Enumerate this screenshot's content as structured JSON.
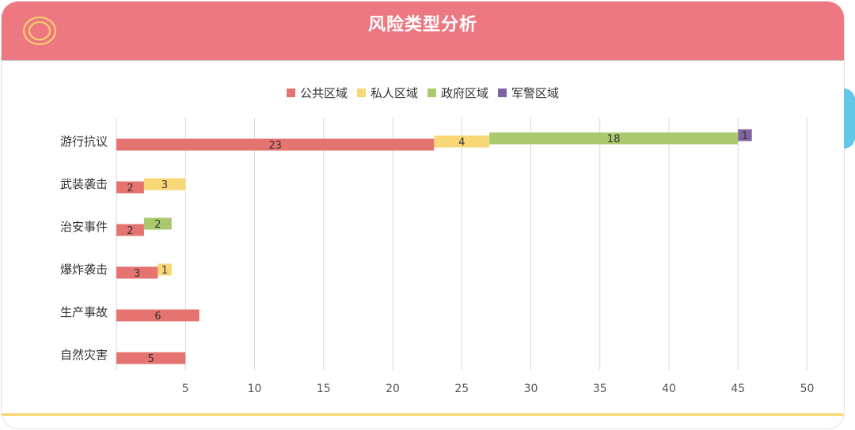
{
  "header": {
    "title": "风险类型分析",
    "colors": {
      "background": "#ee7882",
      "logo": "#f8d46b",
      "bottom_line": "#f8d46b",
      "side_tab": "#62c8e6"
    }
  },
  "chart_data": {
    "type": "bar",
    "orientation": "horizontal",
    "stacked": true,
    "title": "风险类型分析",
    "categories": [
      "游行抗议",
      "武装袭击",
      "治安事件",
      "爆炸袭击",
      "生产事故",
      "自然灾害"
    ],
    "series": [
      {
        "name": "公共区域",
        "color": "#e5736f",
        "values": [
          23,
          2,
          2,
          3,
          6,
          5
        ]
      },
      {
        "name": "私人区域",
        "color": "#f8d777",
        "values": [
          4,
          3,
          0,
          1,
          0,
          0
        ]
      },
      {
        "name": "政府区域",
        "color": "#aac96f",
        "values": [
          18,
          0,
          2,
          0,
          0,
          0
        ]
      },
      {
        "name": "军警区域",
        "color": "#8064a2",
        "values": [
          1,
          0,
          0,
          0,
          0,
          0
        ]
      }
    ],
    "xlim": [
      0,
      50
    ],
    "xticks": [
      5,
      10,
      15,
      20,
      25,
      30,
      35,
      40,
      45,
      50
    ],
    "grid": true,
    "legend_position": "top"
  }
}
